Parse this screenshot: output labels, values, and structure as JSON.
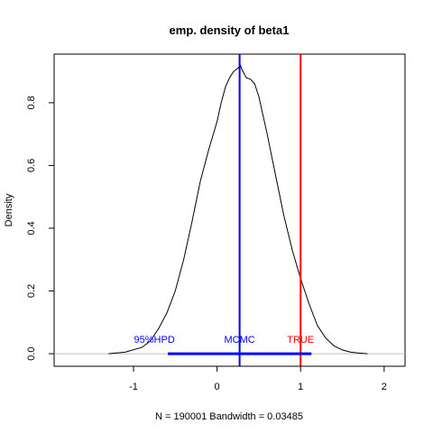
{
  "chart_data": {
    "type": "line",
    "title": "emp. density of beta1",
    "xlabel": "N = 190001   Bandwidth = 0.03485",
    "ylabel": "Density",
    "xlim": [
      -1.95,
      2.25
    ],
    "ylim": [
      -0.04,
      0.955
    ],
    "x_ticks": [
      -1,
      0,
      1,
      2
    ],
    "y_ticks": [
      0.0,
      0.2,
      0.4,
      0.6,
      0.8
    ],
    "x_tick_labels": [
      "-1",
      "0",
      "1",
      "2"
    ],
    "y_tick_labels": [
      "0.0",
      "0.2",
      "0.4",
      "0.6",
      "0.8"
    ],
    "baseline": 0,
    "series": [
      {
        "color": "#000000",
        "x": [
          -1.3,
          -1.1,
          -0.9,
          -0.8,
          -0.7,
          -0.6,
          -0.5,
          -0.4,
          -0.3,
          -0.2,
          -0.1,
          0.0,
          0.05,
          0.1,
          0.15,
          0.2,
          0.25,
          0.28,
          0.3,
          0.35,
          0.4,
          0.45,
          0.5,
          0.6,
          0.7,
          0.8,
          0.9,
          1.0,
          1.1,
          1.2,
          1.3,
          1.4,
          1.5,
          1.6,
          1.7,
          1.8
        ],
        "y": [
          0.0,
          0.005,
          0.02,
          0.04,
          0.08,
          0.13,
          0.2,
          0.3,
          0.42,
          0.55,
          0.65,
          0.74,
          0.8,
          0.85,
          0.88,
          0.9,
          0.91,
          0.92,
          0.905,
          0.88,
          0.875,
          0.86,
          0.82,
          0.7,
          0.57,
          0.44,
          0.33,
          0.24,
          0.16,
          0.09,
          0.05,
          0.025,
          0.012,
          0.005,
          0.002,
          0.0
        ]
      }
    ],
    "vlines": [
      {
        "x": 0.27,
        "color": "#0000ff",
        "label": "MCMC"
      },
      {
        "x": 1.0,
        "color": "#ff0000",
        "label": "TRUE"
      }
    ],
    "hpd": {
      "from": -0.59,
      "to": 1.13,
      "y": 0,
      "color": "#0000ff",
      "label": "95%HPD"
    },
    "annotations": [
      {
        "text": "95%HPD",
        "x": -0.75,
        "y": 0.035,
        "color": "#0000ff"
      },
      {
        "text": "MCMC",
        "x": 0.27,
        "y": 0.035,
        "color": "#0000ff"
      },
      {
        "text": "TRUE",
        "x": 1.0,
        "y": 0.035,
        "color": "#ff0000"
      }
    ]
  }
}
